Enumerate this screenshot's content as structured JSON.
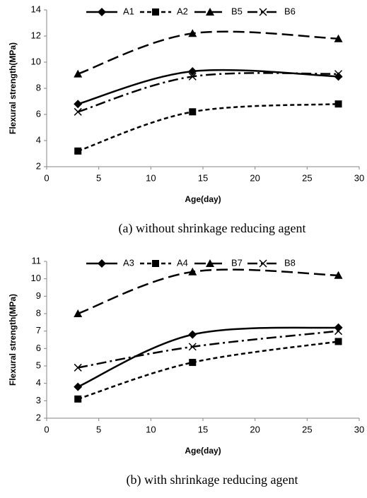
{
  "chart_data": [
    {
      "type": "line",
      "caption": "(a) without shrinkage reducing agent",
      "x_label": "Age(day)",
      "y_label": "Flexural strength(MPa)",
      "x": [
        3,
        14,
        28
      ],
      "xlim": [
        0,
        30
      ],
      "xticks": [
        0,
        5,
        10,
        15,
        20,
        25,
        30
      ],
      "ylim": [
        2,
        14
      ],
      "yticks": [
        2,
        4,
        6,
        8,
        10,
        12,
        14
      ],
      "grid": false,
      "series": [
        {
          "name": "A1",
          "color": "#000000",
          "marker": "diamond",
          "dash": "solid",
          "values": [
            6.8,
            9.3,
            8.9
          ]
        },
        {
          "name": "A2",
          "color": "#000000",
          "marker": "square",
          "dash": "short",
          "values": [
            3.2,
            6.2,
            6.8
          ]
        },
        {
          "name": "B5",
          "color": "#000000",
          "marker": "triangle",
          "dash": "long",
          "values": [
            9.1,
            12.2,
            11.8
          ]
        },
        {
          "name": "B6",
          "color": "#000000",
          "marker": "x",
          "dash": "dashdot",
          "values": [
            6.2,
            8.9,
            9.1
          ]
        }
      ]
    },
    {
      "type": "line",
      "caption": "(b) with shrinkage reducing agent",
      "x_label": "Age(day)",
      "y_label": "Flexural strength(MPa)",
      "x": [
        3,
        14,
        28
      ],
      "xlim": [
        0,
        30
      ],
      "xticks": [
        0,
        5,
        10,
        15,
        20,
        25,
        30
      ],
      "ylim": [
        2,
        11
      ],
      "yticks": [
        2,
        3,
        4,
        5,
        6,
        7,
        8,
        9,
        10,
        11
      ],
      "grid": false,
      "series": [
        {
          "name": "A3",
          "color": "#000000",
          "marker": "diamond",
          "dash": "solid",
          "values": [
            3.8,
            6.8,
            7.2
          ]
        },
        {
          "name": "A4",
          "color": "#000000",
          "marker": "square",
          "dash": "short",
          "values": [
            3.1,
            5.2,
            6.4
          ]
        },
        {
          "name": "B7",
          "color": "#000000",
          "marker": "triangle",
          "dash": "long",
          "values": [
            8.0,
            10.4,
            10.2
          ]
        },
        {
          "name": "B8",
          "color": "#000000",
          "marker": "x",
          "dash": "dashdot",
          "values": [
            4.9,
            6.1,
            7.0
          ]
        }
      ]
    }
  ]
}
